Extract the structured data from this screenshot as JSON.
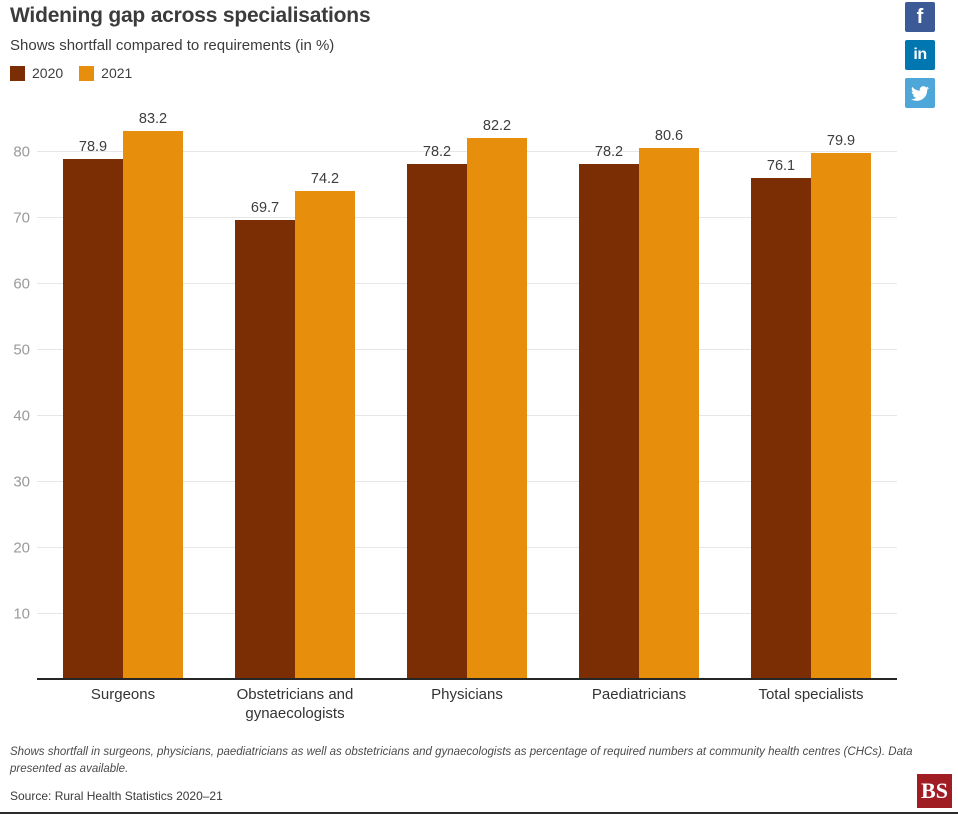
{
  "header": {
    "title": "Widening gap across specialisations",
    "subtitle": "Shows shortfall compared to requirements (in %)"
  },
  "social": {
    "facebook_label": "f",
    "linkedin_label": "in",
    "facebook_color": "#3b5a96",
    "linkedin_color": "#0077b1",
    "twitter_color": "#4da7d9"
  },
  "chart_data": {
    "type": "bar",
    "title": "Widening gap across specialisations",
    "subtitle": "Shows shortfall compared to requirements (in %)",
    "categories": [
      "Surgeons",
      "Obstetricians and gynaecologists",
      "Physicians",
      "Paediatricians",
      "Total specialists"
    ],
    "series": [
      {
        "name": "2020",
        "color": "#7b2e04",
        "values": [
          78.9,
          69.7,
          78.2,
          78.2,
          76.1
        ]
      },
      {
        "name": "2021",
        "color": "#e78e0c",
        "values": [
          83.2,
          74.2,
          82.2,
          80.6,
          79.9
        ]
      }
    ],
    "xlabel": "",
    "ylabel": "",
    "ylim": [
      0,
      86.4
    ],
    "yticks": [
      10,
      20,
      30,
      40,
      50,
      60,
      70,
      80
    ],
    "grid": true,
    "legend_position": "top-left",
    "value_labels": true,
    "gridline_color": "#e7e7e7",
    "axis_color": "#262626",
    "tick_label_color": "#9a9a9a",
    "value_label_color": "#3d3d3d"
  },
  "footer": {
    "note": "Shows shortfall in surgeons, physicians, paediatricians as well as obstetricians and gynaecologists as percentage of required numbers at community health centres (CHCs). Data presented as available.",
    "source": "Source: Rural Health Statistics 2020–21",
    "logo_text": "BS",
    "logo_color": "#a01d24"
  }
}
